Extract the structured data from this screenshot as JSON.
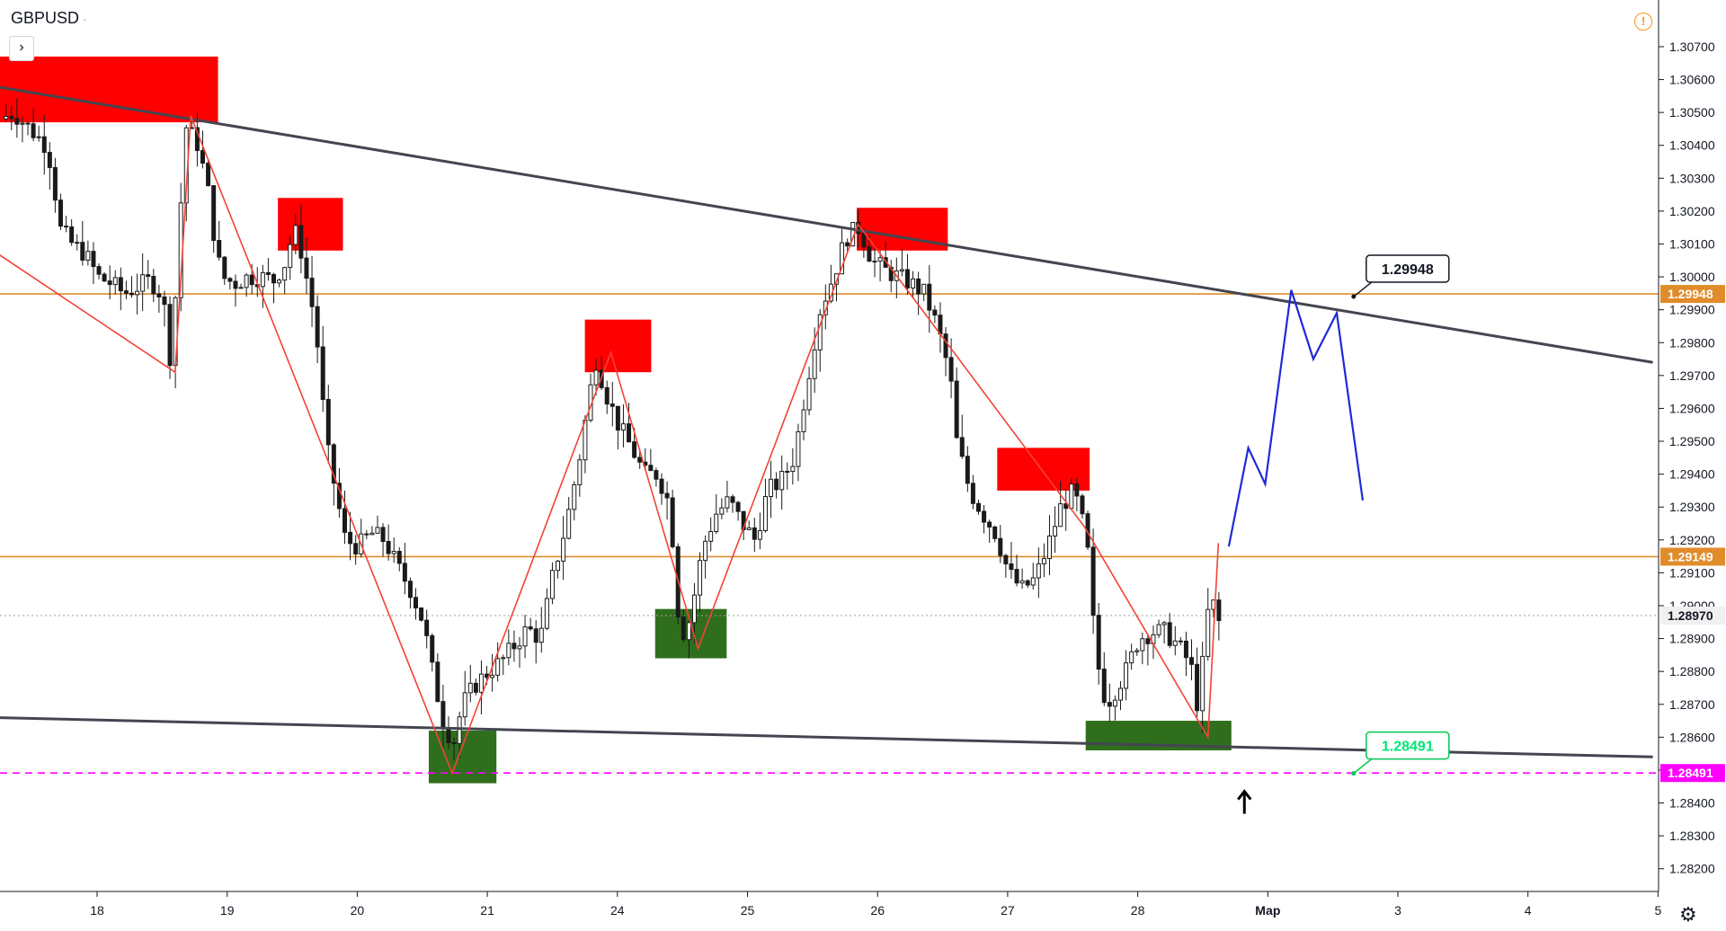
{
  "header": {
    "symbol": "GBPUSD",
    "symbol_suffix": "·",
    "expand_glyph": "›",
    "alert_glyph": "!",
    "settings_glyph": "⚙"
  },
  "chart_data": {
    "type": "candlestick",
    "symbol": "GBPUSD",
    "ylim": [
      1.2815,
      1.3076
    ],
    "y_ticks": [
      "1.28200",
      "1.28300",
      "1.28400",
      "1.28500",
      "1.28600",
      "1.28700",
      "1.28800",
      "1.28900",
      "1.29000",
      "1.29100",
      "1.29200",
      "1.29300",
      "1.29400",
      "1.29500",
      "1.29600",
      "1.29700",
      "1.29800",
      "1.29900",
      "1.30000",
      "1.30100",
      "1.30200",
      "1.30300",
      "1.30400",
      "1.30500",
      "1.30600",
      "1.30700"
    ],
    "x_ticks": [
      {
        "label": "18",
        "x": 0.0
      },
      {
        "label": "19",
        "x": 1.0
      },
      {
        "label": "20",
        "x": 2.0
      },
      {
        "label": "21",
        "x": 3.0
      },
      {
        "label": "24",
        "x": 4.0
      },
      {
        "label": "25",
        "x": 5.0
      },
      {
        "label": "26",
        "x": 6.0
      },
      {
        "label": "27",
        "x": 7.0
      },
      {
        "label": "28",
        "x": 8.0
      },
      {
        "label": "Мар",
        "x": 9.0
      },
      {
        "label": "3",
        "x": 10.0
      },
      {
        "label": "4",
        "x": 11.0
      },
      {
        "label": "5",
        "x": 12.0
      }
    ],
    "candle_path": [
      [
        -0.7,
        1.3048
      ],
      [
        -0.6,
        1.305
      ],
      [
        -0.5,
        1.3046
      ],
      [
        -0.35,
        1.304
      ],
      [
        -0.3,
        1.3032
      ],
      [
        -0.25,
        1.3015
      ],
      [
        -0.15,
        1.301
      ],
      [
        -0.05,
        1.3007
      ],
      [
        0.05,
        1.3
      ],
      [
        0.15,
        1.2998
      ],
      [
        0.25,
        1.2995
      ],
      [
        0.35,
        1.2997
      ],
      [
        0.45,
        1.2999
      ],
      [
        0.55,
        1.2994
      ],
      [
        0.6,
        1.2975
      ],
      [
        0.62,
        1.2985
      ],
      [
        0.66,
        1.3
      ],
      [
        0.7,
        1.3035
      ],
      [
        0.72,
        1.3046
      ],
      [
        0.82,
        1.304
      ],
      [
        0.9,
        1.3025
      ],
      [
        0.95,
        1.301
      ],
      [
        1.0,
        1.3
      ],
      [
        1.1,
        1.2998
      ],
      [
        1.2,
        1.3
      ],
      [
        1.3,
        1.3
      ],
      [
        1.4,
        1.2999
      ],
      [
        1.5,
        1.3005
      ],
      [
        1.55,
        1.3015
      ],
      [
        1.6,
        1.301
      ],
      [
        1.7,
        1.299
      ],
      [
        1.75,
        1.2975
      ],
      [
        1.8,
        1.295
      ],
      [
        1.9,
        1.293
      ],
      [
        1.95,
        1.292
      ],
      [
        2.05,
        1.2918
      ],
      [
        2.15,
        1.2922
      ],
      [
        2.25,
        1.292
      ],
      [
        2.35,
        1.2912
      ],
      [
        2.45,
        1.2905
      ],
      [
        2.55,
        1.2895
      ],
      [
        2.62,
        1.288
      ],
      [
        2.7,
        1.2865
      ],
      [
        2.78,
        1.2858
      ],
      [
        2.85,
        1.287
      ],
      [
        2.95,
        1.2876
      ],
      [
        3.05,
        1.288
      ],
      [
        3.15,
        1.2883
      ],
      [
        3.25,
        1.2888
      ],
      [
        3.35,
        1.2893
      ],
      [
        3.45,
        1.289
      ],
      [
        3.55,
        1.291
      ],
      [
        3.65,
        1.2925
      ],
      [
        3.75,
        1.2945
      ],
      [
        3.83,
        1.2965
      ],
      [
        3.88,
        1.2975
      ],
      [
        3.95,
        1.2965
      ],
      [
        4.05,
        1.2955
      ],
      [
        4.15,
        1.2948
      ],
      [
        4.25,
        1.294
      ],
      [
        4.35,
        1.294
      ],
      [
        4.45,
        1.293
      ],
      [
        4.5,
        1.29
      ],
      [
        4.55,
        1.2892
      ],
      [
        4.6,
        1.2896
      ],
      [
        4.7,
        1.2918
      ],
      [
        4.8,
        1.2928
      ],
      [
        4.9,
        1.2932
      ],
      [
        5.0,
        1.2925
      ],
      [
        5.1,
        1.292
      ],
      [
        5.2,
        1.2935
      ],
      [
        5.3,
        1.2938
      ],
      [
        5.4,
        1.2945
      ],
      [
        5.5,
        1.2968
      ],
      [
        5.6,
        1.299
      ],
      [
        5.7,
        1.3
      ],
      [
        5.8,
        1.3012
      ],
      [
        5.9,
        1.3015
      ],
      [
        6.0,
        1.3005
      ],
      [
        6.1,
        1.3002
      ],
      [
        6.2,
        1.3
      ],
      [
        6.3,
        1.2998
      ],
      [
        6.4,
        1.2995
      ],
      [
        6.5,
        1.2985
      ],
      [
        6.6,
        1.297
      ],
      [
        6.65,
        1.295
      ],
      [
        6.75,
        1.2935
      ],
      [
        6.85,
        1.2928
      ],
      [
        6.95,
        1.2922
      ],
      [
        7.05,
        1.291
      ],
      [
        7.15,
        1.2905
      ],
      [
        7.25,
        1.2908
      ],
      [
        7.35,
        1.2918
      ],
      [
        7.45,
        1.293
      ],
      [
        7.55,
        1.2935
      ],
      [
        7.6,
        1.2928
      ],
      [
        7.65,
        1.292
      ],
      [
        7.72,
        1.2885
      ],
      [
        7.8,
        1.287
      ],
      [
        7.88,
        1.2875
      ],
      [
        7.95,
        1.288
      ],
      [
        8.05,
        1.289
      ],
      [
        8.15,
        1.2892
      ],
      [
        8.25,
        1.2892
      ],
      [
        8.35,
        1.2888
      ],
      [
        8.45,
        1.2882
      ],
      [
        8.5,
        1.287
      ],
      [
        8.55,
        1.2885
      ],
      [
        8.6,
        1.2905
      ],
      [
        8.65,
        1.2895
      ]
    ],
    "resistance_zones": [
      {
        "x1": -0.8,
        "x2": 0.93,
        "y1": 1.3047,
        "y2": 1.3067
      },
      {
        "x1": 1.39,
        "x2": 1.89,
        "y1": 1.3008,
        "y2": 1.3024
      },
      {
        "x1": 3.75,
        "x2": 4.26,
        "y1": 1.2971,
        "y2": 1.2987
      },
      {
        "x1": 5.84,
        "x2": 6.54,
        "y1": 1.3008,
        "y2": 1.3021
      },
      {
        "x1": 6.92,
        "x2": 7.63,
        "y1": 1.2935,
        "y2": 1.2948
      }
    ],
    "support_zones": [
      {
        "x1": 2.55,
        "x2": 3.07,
        "y1": 1.2846,
        "y2": 1.2862
      },
      {
        "x1": 4.29,
        "x2": 4.84,
        "y1": 1.2884,
        "y2": 1.2899
      },
      {
        "x1": 7.6,
        "x2": 8.72,
        "y1": 1.2856,
        "y2": 1.2865
      }
    ],
    "zigzag": [
      [
        -0.8,
        1.3008
      ],
      [
        0.6,
        1.2971
      ],
      [
        0.72,
        1.3049
      ],
      [
        2.73,
        1.2849
      ],
      [
        3.95,
        1.2977
      ],
      [
        4.62,
        1.2887
      ],
      [
        5.85,
        1.3016
      ],
      [
        7.59,
        1.2924
      ],
      [
        8.54,
        1.286
      ],
      [
        8.62,
        1.2919
      ]
    ],
    "trendlines": [
      {
        "from": [
          -0.8,
          1.3058
        ],
        "to": [
          11.96,
          1.2974
        ]
      },
      {
        "from": [
          -0.8,
          1.2866
        ],
        "to": [
          11.96,
          1.2854
        ]
      }
    ],
    "horizontal_levels": [
      {
        "value": 1.29948,
        "label": "1.29948",
        "color": "#e08c2a"
      },
      {
        "value": 1.29149,
        "label": "1.29149",
        "color": "#e08c2a"
      },
      {
        "value": 1.28491,
        "label": "1.28491",
        "color": "#ff00ff",
        "dashed": true
      },
      {
        "value": 1.2897,
        "label": "1.28970",
        "color": "#9e9e9e",
        "dotted": true
      }
    ],
    "projection": [
      [
        8.7,
        1.2918
      ],
      [
        8.85,
        1.2948
      ],
      [
        8.98,
        1.2937
      ],
      [
        9.18,
        1.2996
      ],
      [
        9.35,
        1.2975
      ],
      [
        9.53,
        1.2989
      ],
      [
        9.73,
        1.2932
      ]
    ],
    "callouts": [
      {
        "text": "1.29948",
        "anchor": [
          9.66,
          1.2994
        ],
        "style": "dark"
      },
      {
        "text": "1.28491",
        "anchor": [
          9.66,
          1.2849
        ],
        "style": "green"
      }
    ],
    "arrow": {
      "x": 8.82,
      "y": 1.2846
    }
  }
}
